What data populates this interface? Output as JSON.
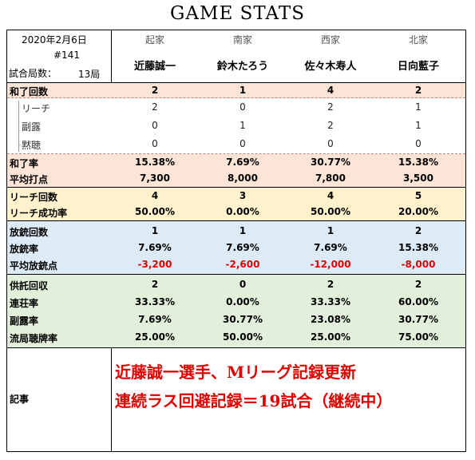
{
  "title": "GAME STATS",
  "header": {
    "date": "2020年2月6日",
    "game_no": "#141",
    "rounds_label": "試合局数：",
    "rounds_value": "13局",
    "seats": [
      "起家",
      "南家",
      "西家",
      "北家"
    ],
    "players": [
      "近藤誠一",
      "鈴木たろう",
      "佐々木寿人",
      "日向藍子"
    ]
  },
  "colors": {
    "win_band": "#fce4d6",
    "riichi_band": "#fff2cc",
    "dealin_band": "#ddebf7",
    "misc_band": "#e2efda",
    "negative_text": "#e00000"
  },
  "rows": {
    "wins": {
      "label": "和了回数",
      "values": [
        "2",
        "1",
        "4",
        "2"
      ]
    },
    "win_riichi": {
      "label": "リーチ",
      "values": [
        "2",
        "0",
        "2",
        "1"
      ]
    },
    "win_open": {
      "label": "副露",
      "values": [
        "0",
        "1",
        "2",
        "1"
      ]
    },
    "win_dama": {
      "label": "黙聴",
      "values": [
        "0",
        "0",
        "0",
        "0"
      ]
    },
    "win_rate": {
      "label": "和了率",
      "values": [
        "15.38%",
        "7.69%",
        "30.77%",
        "15.38%"
      ]
    },
    "avg_points": {
      "label": "平均打点",
      "values": [
        "7,300",
        "8,000",
        "7,800",
        "3,500"
      ]
    },
    "riichi_count": {
      "label": "リーチ回数",
      "values": [
        "4",
        "3",
        "4",
        "5"
      ]
    },
    "riichi_success": {
      "label": "リーチ成功率",
      "values": [
        "50.00%",
        "0.00%",
        "50.00%",
        "20.00%"
      ]
    },
    "dealin_count": {
      "label": "放銃回数",
      "values": [
        "1",
        "1",
        "1",
        "2"
      ]
    },
    "dealin_rate": {
      "label": "放銃率",
      "values": [
        "7.69%",
        "7.69%",
        "7.69%",
        "15.38%"
      ]
    },
    "avg_dealin": {
      "label": "平均放銃点",
      "values": [
        "-3,200",
        "-2,600",
        "-12,000",
        "-8,000"
      ]
    },
    "deposit": {
      "label": "供託回収",
      "values": [
        "2",
        "0",
        "2",
        "2"
      ]
    },
    "rentai": {
      "label": "連荘率",
      "values": [
        "33.33%",
        "0.00%",
        "33.33%",
        "60.00%"
      ]
    },
    "furo_rate": {
      "label": "副露率",
      "values": [
        "7.69%",
        "30.77%",
        "23.08%",
        "30.77%"
      ]
    },
    "tenpai_rate": {
      "label": "流局聴牌率",
      "values": [
        "25.00%",
        "50.00%",
        "25.00%",
        "75.00%"
      ]
    }
  },
  "article": {
    "label": "記事",
    "line1": "近藤誠一選手、Mリーグ記録更新",
    "line2": "連続ラス回避記録＝19試合（継続中）"
  }
}
